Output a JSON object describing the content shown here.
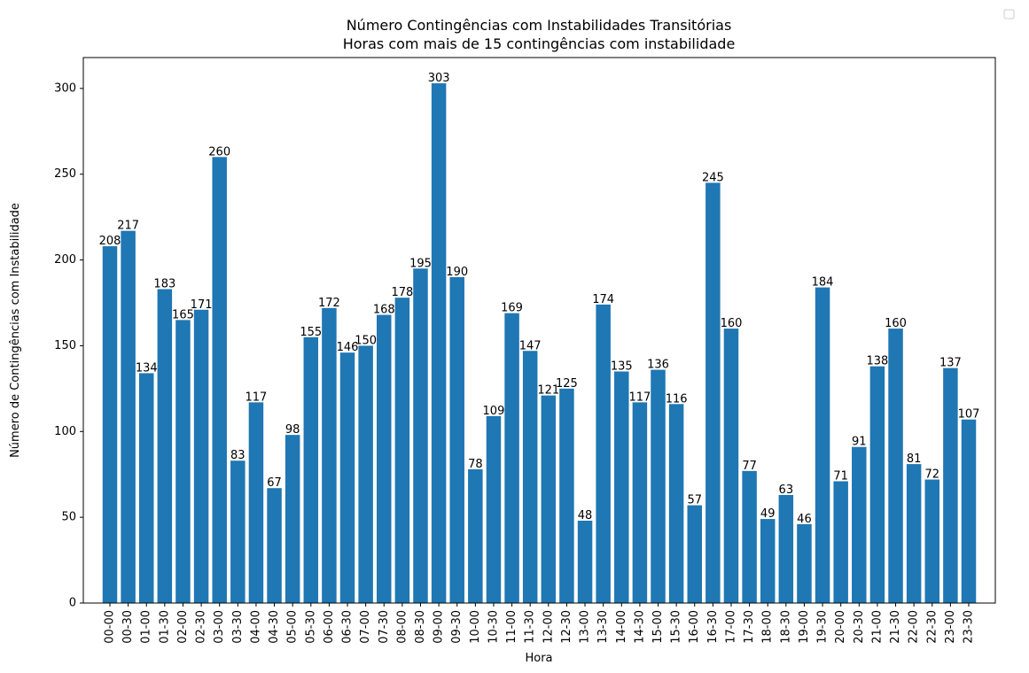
{
  "chart_data": {
    "type": "bar",
    "title": "Número Contingências com Instabilidades Transitórias",
    "subtitle": "Horas com mais de 15 contingências com instabilidade",
    "xlabel": "Hora",
    "ylabel": "Número de Contingências com Instabilidade",
    "ylim": [
      0,
      318
    ],
    "yticks": [
      0,
      50,
      100,
      150,
      200,
      250,
      300
    ],
    "grid": false,
    "legend": "top-right (empty)",
    "bar_color": "#1f77b4",
    "categories": [
      "00-00",
      "00-30",
      "01-00",
      "01-30",
      "02-00",
      "02-30",
      "03-00",
      "03-30",
      "04-00",
      "04-30",
      "05-00",
      "05-30",
      "06-00",
      "06-30",
      "07-00",
      "07-30",
      "08-00",
      "08-30",
      "09-00",
      "09-30",
      "10-00",
      "10-30",
      "11-00",
      "11-30",
      "12-00",
      "12-30",
      "13-00",
      "13-30",
      "14-00",
      "14-30",
      "15-00",
      "15-30",
      "16-00",
      "16-30",
      "17-00",
      "17-30",
      "18-00",
      "18-30",
      "19-00",
      "19-30",
      "20-00",
      "20-30",
      "21-00",
      "21-30",
      "22-00",
      "22-30",
      "23-00",
      "23-30"
    ],
    "values": [
      208,
      217,
      134,
      183,
      165,
      171,
      260,
      83,
      117,
      67,
      98,
      155,
      172,
      146,
      150,
      168,
      178,
      195,
      303,
      190,
      78,
      109,
      169,
      147,
      121,
      125,
      48,
      174,
      135,
      117,
      136,
      116,
      57,
      245,
      160,
      77,
      49,
      63,
      46,
      184,
      71,
      91,
      138,
      160,
      81,
      72,
      137,
      107
    ]
  }
}
